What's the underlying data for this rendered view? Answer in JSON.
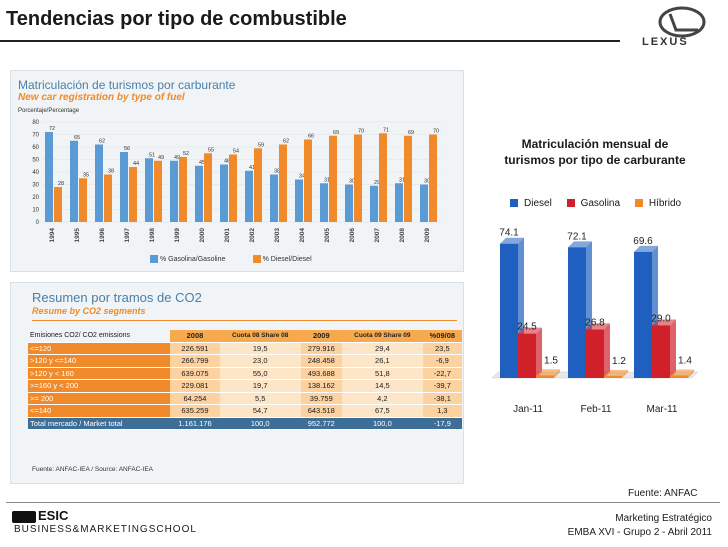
{
  "slide": {
    "title": "Tendencias por tipo de combustible",
    "brand": "LEXUS",
    "source": "Fuente: ANFAC",
    "footer_line1": "Marketing Estratégico",
    "footer_line2": "EMBA XVI - Grupo 2 - Abril 2011",
    "school_top": "ESIC",
    "school_bottom": "BUSINESS&MARKETINGSCHOOL"
  },
  "panel1": {
    "title": "Matriculación de turismos por carburante",
    "subtitle": "New car registration by type of fuel",
    "y_label": "Porcentaje/Percentage",
    "legend_gas": "% Gasolina/Gasoline",
    "legend_diesel": "% Diesel/Diesel",
    "colors": {
      "gas": "#5b9bd5",
      "diesel": "#f08a2a"
    }
  },
  "panel2": {
    "title": "Resumen por tramos de CO2",
    "subtitle": "Resume by CO2 segments",
    "header": [
      "Emisiones CO2/ CO2 emissions",
      "2008",
      "Cuota 08 Share 08",
      "2009",
      "Cuota 09 Share 09",
      "%09/08"
    ],
    "rows": [
      [
        "<=120",
        "226.591",
        "19,5",
        "279.916",
        "29,4",
        "23,5"
      ],
      [
        ">120 y <=140",
        "266.799",
        "23,0",
        "248.458",
        "26,1",
        "-6,9"
      ],
      [
        ">120 y < 160",
        "639.075",
        "55,0",
        "493.688",
        "51,8",
        "-22,7"
      ],
      [
        ">=160 y < 200",
        "229.081",
        "19,7",
        "138.162",
        "14,5",
        "-39,7"
      ],
      [
        ">= 200",
        "64.254",
        "5,5",
        "39.759",
        "4,2",
        "-38,1"
      ],
      [
        "<=140",
        "635.259",
        "54,7",
        "643.518",
        "67,5",
        "1,3"
      ]
    ],
    "total": [
      "Total mercado / Market total",
      "1.161.176",
      "100,0",
      "952.772",
      "100,0",
      "-17,9"
    ],
    "source": "Fuente: ANFAC-IEA / Source: ANFAC-IEA"
  },
  "chart_data": [
    {
      "type": "bar",
      "title": "Matriculación de turismos por carburante",
      "ylabel": "Porcentaje/Percentage",
      "categories": [
        "1994",
        "1995",
        "1996",
        "1997",
        "1998",
        "1999",
        "2000",
        "2001",
        "2002",
        "2003",
        "2004",
        "2005",
        "2006",
        "2007",
        "2008",
        "2009"
      ],
      "series": [
        {
          "name": "% Gasolina/Gasoline",
          "values": [
            72,
            65,
            62,
            56,
            51,
            49,
            45,
            46,
            41,
            38,
            34,
            31,
            30,
            29,
            31,
            30
          ]
        },
        {
          "name": "% Diesel/Diesel",
          "values": [
            28,
            35,
            38,
            44,
            49,
            52,
            55,
            54,
            59,
            62,
            66,
            69,
            70,
            71,
            69,
            70
          ]
        }
      ],
      "yticks": [
        0,
        10,
        20,
        30,
        40,
        50,
        60,
        70,
        80
      ],
      "ylim": [
        0,
        80
      ]
    },
    {
      "type": "bar",
      "title": "Matriculación mensual de turismos por tipo de carburante",
      "categories": [
        "Jan-11",
        "Feb-11",
        "Mar-11"
      ],
      "series": [
        {
          "name": "Diesel",
          "color": "#1f5fbf",
          "values": [
            74.1,
            72.1,
            69.6
          ]
        },
        {
          "name": "Gasolina",
          "color": "#d0202a",
          "values": [
            24.5,
            26.8,
            29.0
          ]
        },
        {
          "name": "Híbrido",
          "color": "#f08a2a",
          "values": [
            1.5,
            1.2,
            1.4
          ]
        }
      ],
      "labels": {
        "Diesel": [
          "74.1",
          "72.1",
          "69.6"
        ],
        "Gasolina": [
          "24.5",
          "26.8",
          "29.0"
        ],
        "Híbrido": [
          "1.5",
          "1.2",
          "1.4"
        ]
      },
      "ylim": [
        0,
        80
      ]
    }
  ]
}
